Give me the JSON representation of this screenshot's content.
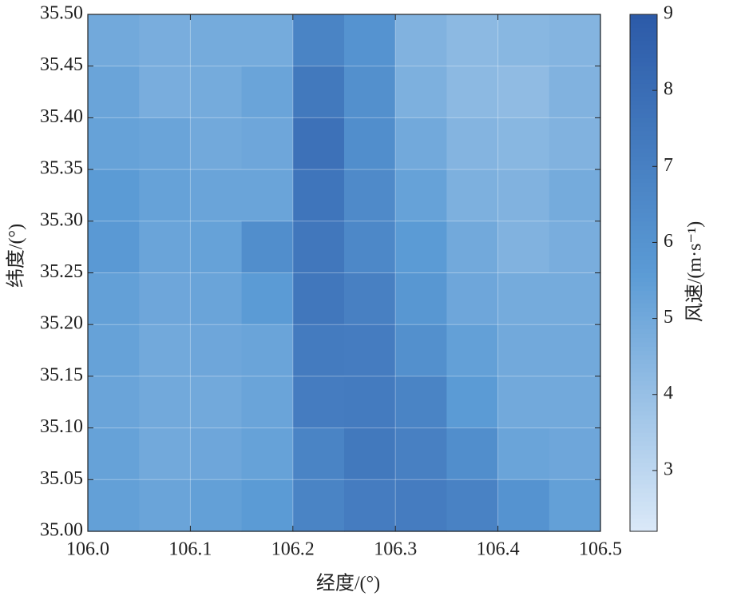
{
  "chart_data": {
    "type": "heatmap",
    "x_label": "经度/(°)",
    "y_label": "纬度/(°)",
    "colorbar_label": "风速/(m·s⁻¹)",
    "x": [
      106.025,
      106.075,
      106.125,
      106.175,
      106.225,
      106.275,
      106.325,
      106.375,
      106.425,
      106.475
    ],
    "y": [
      35.475,
      35.425,
      35.375,
      35.325,
      35.275,
      35.225,
      35.175,
      35.125,
      35.075,
      35.025
    ],
    "values": [
      [
        5.0,
        4.8,
        4.9,
        4.9,
        6.8,
        6.0,
        4.6,
        4.3,
        4.4,
        4.5
      ],
      [
        5.2,
        4.8,
        4.9,
        5.2,
        7.4,
        6.2,
        4.7,
        4.3,
        4.2,
        4.6
      ],
      [
        5.3,
        5.2,
        5.0,
        5.1,
        7.8,
        6.3,
        5.0,
        4.5,
        4.4,
        4.6
      ],
      [
        5.6,
        5.3,
        5.2,
        5.2,
        7.6,
        6.5,
        5.3,
        4.7,
        4.6,
        4.9
      ],
      [
        5.7,
        5.2,
        5.3,
        6.3,
        7.5,
        6.6,
        5.6,
        5.0,
        4.6,
        4.8
      ],
      [
        5.4,
        5.1,
        5.2,
        5.6,
        7.5,
        7.0,
        5.8,
        5.1,
        4.9,
        4.9
      ],
      [
        5.3,
        5.0,
        5.1,
        5.2,
        7.3,
        7.2,
        6.2,
        5.4,
        5.0,
        5.0
      ],
      [
        5.2,
        5.0,
        5.0,
        5.2,
        7.2,
        7.3,
        6.8,
        5.6,
        5.0,
        5.0
      ],
      [
        5.3,
        5.0,
        5.1,
        5.3,
        6.8,
        7.4,
        7.0,
        6.3,
        5.2,
        5.1
      ],
      [
        5.4,
        5.2,
        5.4,
        5.6,
        6.8,
        7.2,
        7.2,
        6.9,
        6.0,
        5.4
      ]
    ],
    "xlim": [
      106.0,
      106.5
    ],
    "xticks": [
      {
        "value": 106.0,
        "label": "106.0"
      },
      {
        "value": 106.1,
        "label": "106.1"
      },
      {
        "value": 106.2,
        "label": "106.2"
      },
      {
        "value": 106.3,
        "label": "106.3"
      },
      {
        "value": 106.4,
        "label": "106.4"
      },
      {
        "value": 106.5,
        "label": "106.5"
      }
    ],
    "ylim": [
      35.0,
      35.5
    ],
    "yticks": [
      {
        "value": 35.0,
        "label": "35.00"
      },
      {
        "value": 35.05,
        "label": "35.05"
      },
      {
        "value": 35.1,
        "label": "35.10"
      },
      {
        "value": 35.15,
        "label": "35.15"
      },
      {
        "value": 35.2,
        "label": "35.20"
      },
      {
        "value": 35.25,
        "label": "35.25"
      },
      {
        "value": 35.3,
        "label": "35.30"
      },
      {
        "value": 35.35,
        "label": "35.35"
      },
      {
        "value": 35.4,
        "label": "35.40"
      },
      {
        "value": 35.45,
        "label": "35.45"
      },
      {
        "value": 35.5,
        "label": "35.50"
      }
    ],
    "clim": [
      2.2,
      9
    ],
    "cticks": [
      3,
      4,
      5,
      6,
      7,
      8,
      9
    ],
    "colormap": [
      "#dbe9f8",
      "#5b9bd5",
      "#2c5aa8"
    ],
    "grid": true
  }
}
